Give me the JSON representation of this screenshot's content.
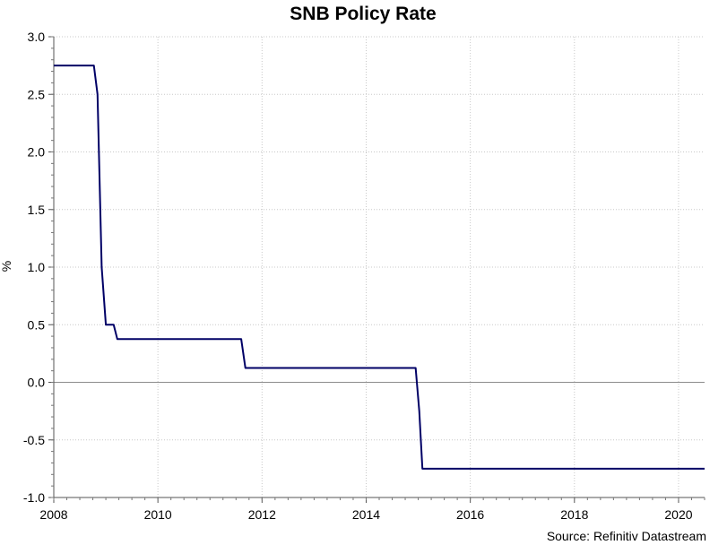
{
  "chart_data": {
    "type": "line",
    "title": "SNB Policy Rate",
    "xlabel": "",
    "ylabel": "%",
    "source": "Source: Refinitiv Datastream",
    "xlim": [
      2008,
      2020.5
    ],
    "ylim": [
      -1.0,
      3.0
    ],
    "x_ticks": [
      2008,
      2010,
      2012,
      2014,
      2016,
      2018,
      2020
    ],
    "x_tick_labels": [
      "2008",
      "2010",
      "2012",
      "2014",
      "2016",
      "2018",
      "2020"
    ],
    "y_ticks": [
      -1.0,
      -0.5,
      0.0,
      0.5,
      1.0,
      1.5,
      2.0,
      2.5,
      3.0
    ],
    "y_tick_labels": [
      "-1.0",
      "-0.5",
      "0.0",
      "0.5",
      "1.0",
      "1.5",
      "2.0",
      "2.5",
      "3.0"
    ],
    "grid": true,
    "zero_line": true,
    "series": [
      {
        "name": "SNB Policy Rate",
        "color": "#000066",
        "points": [
          [
            2008.0,
            2.75
          ],
          [
            2008.77,
            2.75
          ],
          [
            2008.84,
            2.5
          ],
          [
            2008.88,
            1.75
          ],
          [
            2008.92,
            1.0
          ],
          [
            2009.0,
            0.5
          ],
          [
            2009.15,
            0.5
          ],
          [
            2009.22,
            0.375
          ],
          [
            2011.6,
            0.375
          ],
          [
            2011.68,
            0.125
          ],
          [
            2014.95,
            0.125
          ],
          [
            2015.02,
            -0.25
          ],
          [
            2015.08,
            -0.75
          ],
          [
            2020.5,
            -0.75
          ]
        ]
      }
    ]
  }
}
